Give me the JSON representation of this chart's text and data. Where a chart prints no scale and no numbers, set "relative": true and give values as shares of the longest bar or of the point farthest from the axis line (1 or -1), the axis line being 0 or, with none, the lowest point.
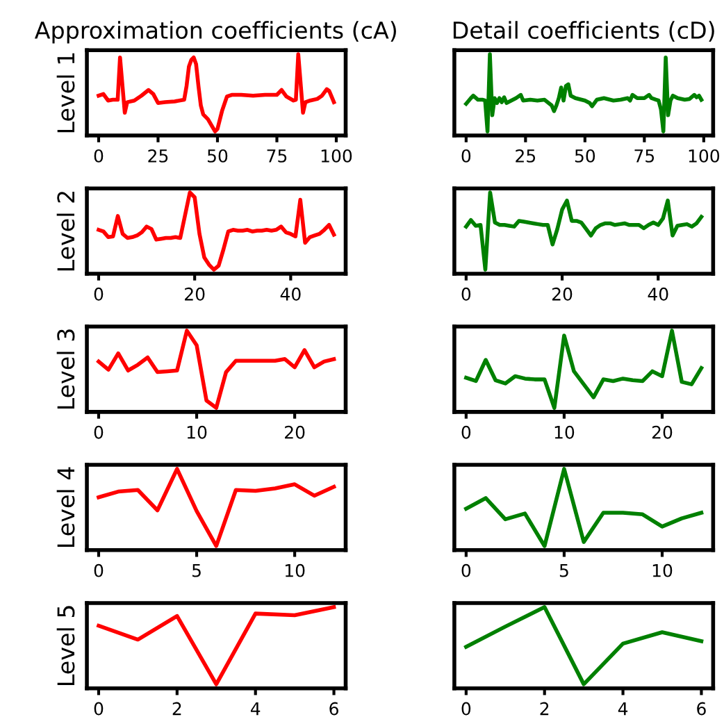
{
  "chart_data": [
    {
      "type": "line",
      "title": "Approximation coefficients (cA)",
      "ylabel": "Level 1",
      "relative": true,
      "xlim": [
        -4.95,
        103.95
      ],
      "xticks": [
        0,
        25,
        50,
        75,
        100
      ],
      "tick_labels": "x",
      "series": [
        {
          "color": "#ff0000",
          "x": [
            0,
            2,
            4,
            6,
            8,
            9,
            11,
            12,
            15,
            18,
            21,
            23,
            25,
            28,
            32,
            36,
            37,
            38,
            39,
            40,
            41,
            42,
            43,
            44,
            46,
            48,
            49,
            50,
            52,
            54,
            56,
            60,
            65,
            70,
            75,
            77,
            79,
            82,
            83,
            84,
            86,
            87,
            89,
            92,
            94,
            96,
            97,
            98,
            99
          ],
          "values": [
            0.49,
            0.51,
            0.43,
            0.44,
            0.44,
            0.96,
            0.28,
            0.41,
            0.43,
            0.49,
            0.56,
            0.51,
            0.4,
            0.41,
            0.42,
            0.44,
            0.61,
            0.85,
            0.93,
            0.96,
            0.88,
            0.61,
            0.37,
            0.26,
            0.2,
            0.1,
            0.05,
            0.08,
            0.31,
            0.48,
            0.5,
            0.5,
            0.49,
            0.5,
            0.5,
            0.56,
            0.48,
            0.43,
            0.44,
            1,
            0.28,
            0.41,
            0.43,
            0.45,
            0.49,
            0.57,
            0.55,
            0.48,
            0.41
          ]
        }
      ]
    },
    {
      "type": "line",
      "title": "Detail coefficients (cD)",
      "relative": true,
      "xlim": [
        -4.95,
        103.95
      ],
      "xticks": [
        0,
        25,
        50,
        75,
        100
      ],
      "tick_labels": "x",
      "series": [
        {
          "color": "#008000",
          "x": [
            0,
            2,
            3,
            5,
            7,
            8,
            9,
            10,
            11,
            12,
            13,
            14,
            15,
            16,
            17,
            19,
            21,
            23,
            24,
            27,
            30,
            33,
            36,
            37,
            38,
            39,
            40,
            41,
            42,
            43,
            44,
            46,
            50,
            52,
            53,
            55,
            58,
            62,
            65,
            68,
            69,
            70,
            72,
            75,
            77,
            78,
            80,
            81,
            82,
            83,
            84,
            85,
            86,
            87,
            89,
            92,
            94,
            96,
            97,
            98,
            99
          ],
          "values": [
            0.39,
            0.46,
            0.49,
            0.44,
            0.44,
            0.43,
            0.05,
            1,
            0.25,
            0.46,
            0.4,
            0.46,
            0.41,
            0.47,
            0.4,
            0.43,
            0.46,
            0.5,
            0.43,
            0.44,
            0.43,
            0.44,
            0.37,
            0.3,
            0.37,
            0.46,
            0.59,
            0.43,
            0.61,
            0.63,
            0.49,
            0.46,
            0.43,
            0.4,
            0.36,
            0.44,
            0.46,
            0.43,
            0.44,
            0.46,
            0.43,
            0.5,
            0.46,
            0.46,
            0.5,
            0.46,
            0.44,
            0.43,
            0.32,
            0.05,
            0.96,
            0.25,
            0.43,
            0.49,
            0.46,
            0.44,
            0.45,
            0.5,
            0.47,
            0.49,
            0.44
          ]
        }
      ]
    },
    {
      "type": "line",
      "ylabel": "Level 2",
      "relative": true,
      "xlim": [
        -2.45,
        51.45
      ],
      "xticks": [
        0,
        20,
        40
      ],
      "tick_labels": "x",
      "series": [
        {
          "color": "#ff0000",
          "x": [
            0,
            1,
            2,
            3,
            4,
            5,
            6,
            7,
            8,
            9,
            10,
            11,
            12,
            13,
            14,
            15,
            16,
            17,
            18,
            19,
            20,
            21,
            22,
            23,
            24,
            25,
            26,
            27,
            28,
            29,
            30,
            31,
            32,
            33,
            34,
            35,
            36,
            37,
            38,
            39,
            40,
            41,
            42,
            43,
            44,
            45,
            46,
            47,
            48,
            49
          ],
          "values": [
            0.54,
            0.52,
            0.45,
            0.46,
            0.71,
            0.49,
            0.44,
            0.45,
            0.47,
            0.51,
            0.58,
            0.55,
            0.42,
            0.43,
            0.44,
            0.44,
            0.45,
            0.44,
            0.72,
            1,
            0.94,
            0.49,
            0.2,
            0.11,
            0.05,
            0.1,
            0.3,
            0.52,
            0.54,
            0.53,
            0.53,
            0.54,
            0.52,
            0.53,
            0.53,
            0.54,
            0.53,
            0.54,
            0.58,
            0.51,
            0.49,
            0.46,
            0.91,
            0.38,
            0.45,
            0.47,
            0.49,
            0.54,
            0.6,
            0.48
          ]
        }
      ]
    },
    {
      "type": "line",
      "relative": true,
      "xlim": [
        -2.45,
        51.45
      ],
      "xticks": [
        0,
        20,
        40
      ],
      "tick_labels": "x",
      "series": [
        {
          "color": "#008000",
          "x": [
            0,
            1,
            2,
            3,
            4,
            5,
            6,
            7,
            8,
            9,
            10,
            11,
            12,
            13,
            14,
            15,
            16,
            17,
            18,
            19,
            20,
            21,
            22,
            23,
            24,
            25,
            26,
            27,
            28,
            29,
            30,
            31,
            32,
            33,
            34,
            35,
            36,
            37,
            38,
            39,
            40,
            41,
            42,
            43,
            44,
            45,
            46,
            47,
            48,
            49
          ],
          "values": [
            0.58,
            0.66,
            0.59,
            0.6,
            0.05,
            1,
            0.63,
            0.6,
            0.6,
            0.59,
            0.58,
            0.65,
            0.64,
            0.63,
            0.62,
            0.61,
            0.6,
            0.6,
            0.36,
            0.55,
            0.79,
            0.9,
            0.65,
            0.65,
            0.63,
            0.55,
            0.47,
            0.56,
            0.6,
            0.62,
            0.62,
            0.6,
            0.61,
            0.62,
            0.6,
            0.6,
            0.6,
            0.56,
            0.6,
            0.63,
            0.6,
            0.68,
            0.9,
            0.47,
            0.59,
            0.6,
            0.61,
            0.58,
            0.62,
            0.7
          ]
        }
      ]
    },
    {
      "type": "line",
      "ylabel": "Level 3",
      "relative": true,
      "xlim": [
        -1.2,
        25.2
      ],
      "xticks": [
        0,
        10,
        20
      ],
      "tick_labels": "x",
      "series": [
        {
          "color": "#ff0000",
          "x": [
            0,
            1,
            2,
            3,
            4,
            5,
            6,
            7,
            8,
            9,
            10,
            11,
            12,
            13,
            14,
            15,
            16,
            17,
            18,
            19,
            20,
            21,
            22,
            23,
            24
          ],
          "values": [
            0.62,
            0.52,
            0.72,
            0.51,
            0.58,
            0.67,
            0.49,
            0.5,
            0.51,
            1,
            0.82,
            0.14,
            0.05,
            0.49,
            0.63,
            0.63,
            0.63,
            0.63,
            0.63,
            0.65,
            0.55,
            0.76,
            0.55,
            0.62,
            0.65
          ]
        }
      ]
    },
    {
      "type": "line",
      "relative": true,
      "xlim": [
        -1.2,
        25.2
      ],
      "xticks": [
        0,
        10,
        20
      ],
      "tick_labels": "x",
      "series": [
        {
          "color": "#008000",
          "x": [
            0,
            1,
            2,
            3,
            4,
            5,
            6,
            7,
            8,
            9,
            10,
            11,
            12,
            13,
            14,
            15,
            16,
            17,
            18,
            19,
            20,
            21,
            22,
            23,
            24
          ],
          "values": [
            0.42,
            0.38,
            0.64,
            0.39,
            0.35,
            0.44,
            0.41,
            0.4,
            0.4,
            0.05,
            0.94,
            0.5,
            0.34,
            0.18,
            0.4,
            0.38,
            0.41,
            0.39,
            0.38,
            0.5,
            0.44,
            1,
            0.37,
            0.34,
            0.54
          ]
        }
      ]
    },
    {
      "type": "line",
      "ylabel": "Level 4",
      "relative": true,
      "xlim": [
        -0.6,
        12.6
      ],
      "xticks": [
        0,
        5,
        10
      ],
      "tick_labels": "x",
      "series": [
        {
          "color": "#ff0000",
          "x": [
            0,
            1,
            2,
            3,
            4,
            5,
            6,
            7,
            8,
            9,
            10,
            11,
            12
          ],
          "values": [
            0.65,
            0.72,
            0.74,
            0.49,
            1,
            0.48,
            0.05,
            0.74,
            0.73,
            0.76,
            0.81,
            0.67,
            0.78
          ]
        }
      ]
    },
    {
      "type": "line",
      "relative": true,
      "xlim": [
        -0.6,
        12.6
      ],
      "xticks": [
        0,
        5,
        10
      ],
      "tick_labels": "x",
      "series": [
        {
          "color": "#008000",
          "x": [
            0,
            1,
            2,
            3,
            4,
            5,
            6,
            7,
            8,
            9,
            10,
            11,
            12
          ],
          "values": [
            0.51,
            0.64,
            0.38,
            0.45,
            0.05,
            1,
            0.1,
            0.46,
            0.46,
            0.44,
            0.29,
            0.39,
            0.46
          ]
        }
      ]
    },
    {
      "type": "line",
      "ylabel": "Level 5",
      "relative": true,
      "xlim": [
        -0.3,
        6.3
      ],
      "xticks": [
        0,
        2,
        4,
        6
      ],
      "tick_labels": "x",
      "series": [
        {
          "color": "#ff0000",
          "x": [
            0,
            1,
            2,
            3,
            4,
            5,
            6
          ],
          "values": [
            0.77,
            0.6,
            0.89,
            0.05,
            0.92,
            0.9,
            1
          ]
        }
      ]
    },
    {
      "type": "line",
      "relative": true,
      "xlim": [
        -0.3,
        6.3
      ],
      "xticks": [
        0,
        2,
        4,
        6
      ],
      "tick_labels": "x",
      "series": [
        {
          "color": "#008000",
          "x": [
            0,
            1,
            2,
            3,
            4,
            5,
            6
          ],
          "values": [
            0.51,
            0.76,
            1,
            0.05,
            0.55,
            0.69,
            0.58
          ]
        }
      ]
    }
  ]
}
